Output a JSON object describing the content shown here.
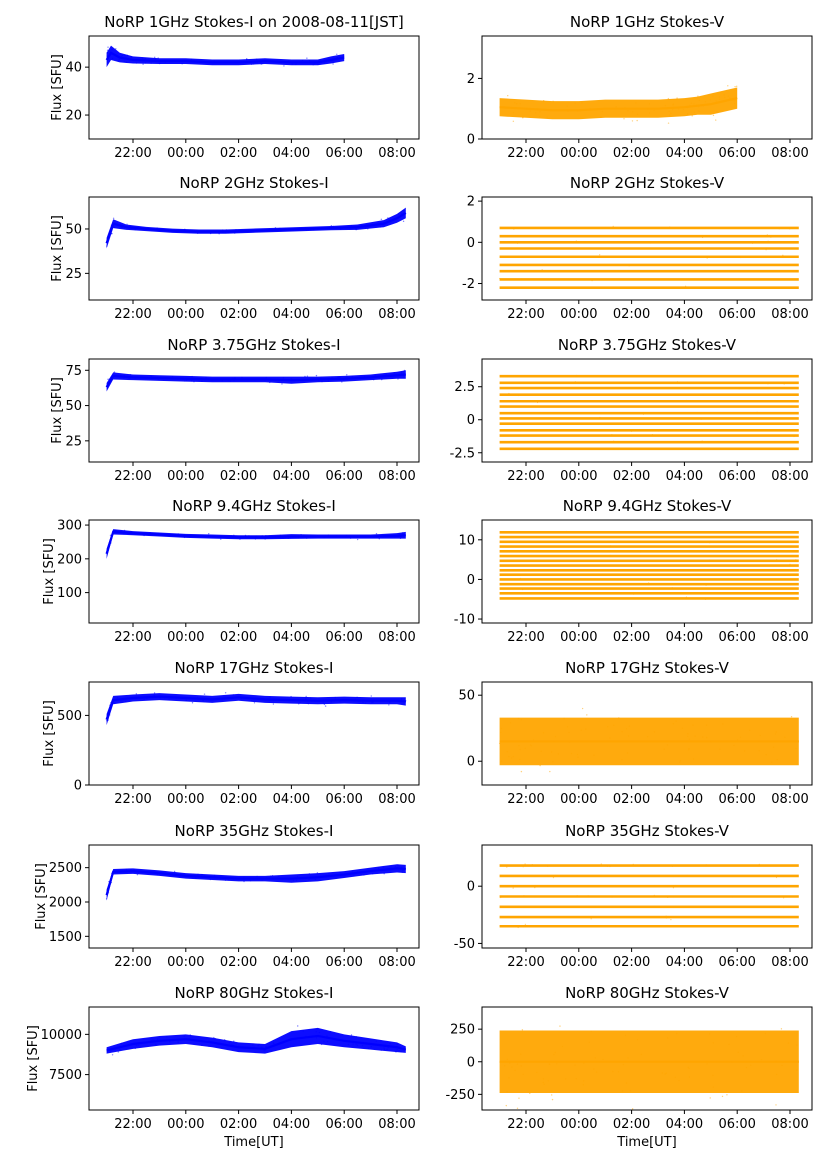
{
  "xticks": [
    "22:00",
    "00:00",
    "02:00",
    "04:00",
    "06:00",
    "08:00"
  ],
  "colors": {
    "stokes_i": "#0000ff",
    "stokes_v": "#ffa500"
  },
  "chart_data": [
    {
      "type": "scatter",
      "title": "NoRP 1GHz Stokes-I on 2008-08-11[JST]",
      "xlabel": "",
      "ylabel": "Flux [SFU]",
      "xlim": [
        "20:20",
        "08:50"
      ],
      "ylim": [
        10,
        53
      ],
      "yticks": [
        20,
        40
      ],
      "series": [
        {
          "color": "#0000ff",
          "x": [
            "21:00",
            "21:10",
            "21:30",
            "22:00",
            "23:00",
            "00:00",
            "01:00",
            "02:00",
            "03:00",
            "04:00",
            "05:00",
            "05:30",
            "06:00"
          ],
          "y": [
            43,
            46,
            44,
            43,
            42.5,
            42.5,
            42,
            42,
            42.5,
            42,
            42,
            43,
            44
          ],
          "spread": [
            3,
            3,
            2,
            1.5,
            1.2,
            1.2,
            1.2,
            1.2,
            1.2,
            1.2,
            1.2,
            1.5,
            1.5
          ]
        }
      ]
    },
    {
      "type": "scatter",
      "title": "NoRP 1GHz Stokes-V",
      "xlabel": "",
      "ylabel": "",
      "xlim": [
        "20:20",
        "08:50"
      ],
      "ylim": [
        0,
        3.4
      ],
      "yticks": [
        0,
        2
      ],
      "series": [
        {
          "color": "#ffa500",
          "x": [
            "21:00",
            "22:00",
            "23:00",
            "00:00",
            "01:00",
            "02:00",
            "03:00",
            "04:00",
            "04:30",
            "05:00",
            "05:30",
            "06:00"
          ],
          "y": [
            1.05,
            1.0,
            0.95,
            0.95,
            1.0,
            1.0,
            1.0,
            1.05,
            1.1,
            1.15,
            1.25,
            1.35
          ],
          "spread": [
            0.3,
            0.3,
            0.3,
            0.3,
            0.3,
            0.3,
            0.3,
            0.3,
            0.3,
            0.35,
            0.35,
            0.35
          ]
        }
      ]
    },
    {
      "type": "scatter",
      "title": "NoRP 2GHz Stokes-I",
      "xlabel": "",
      "ylabel": "Flux [SFU]",
      "xlim": [
        "20:20",
        "08:50"
      ],
      "ylim": [
        10,
        68
      ],
      "yticks": [
        25,
        50
      ],
      "series": [
        {
          "color": "#0000ff",
          "x": [
            "21:00",
            "21:15",
            "21:45",
            "22:30",
            "23:30",
            "00:30",
            "01:30",
            "02:30",
            "03:30",
            "04:30",
            "05:30",
            "06:30",
            "07:30",
            "08:00",
            "08:20"
          ],
          "y": [
            42,
            53,
            51,
            50,
            49,
            48.5,
            48.5,
            49,
            49.5,
            50,
            50.5,
            51,
            53,
            56,
            59
          ],
          "spread": [
            3,
            2.5,
            1.5,
            1.2,
            1.2,
            1.2,
            1.2,
            1.2,
            1.2,
            1.2,
            1.2,
            1.5,
            2,
            2.5,
            3
          ]
        }
      ]
    },
    {
      "type": "scatter",
      "title": "NoRP 2GHz Stokes-V",
      "xlabel": "",
      "ylabel": "",
      "xlim": [
        "20:20",
        "08:50"
      ],
      "ylim": [
        -2.8,
        2.2
      ],
      "yticks": [
        -2,
        0,
        2
      ],
      "series": [
        {
          "color": "#ffa500",
          "levels": [
            -2.2,
            -1.8,
            -1.4,
            -1.1,
            -0.7,
            -0.3,
            0.0,
            0.3,
            0.7
          ],
          "x": [
            "21:00",
            "08:20"
          ]
        }
      ]
    },
    {
      "type": "scatter",
      "title": "NoRP 3.75GHz Stokes-I",
      "xlabel": "",
      "ylabel": "Flux [SFU]",
      "xlim": [
        "20:20",
        "08:50"
      ],
      "ylim": [
        10,
        83
      ],
      "yticks": [
        25,
        50,
        75
      ],
      "series": [
        {
          "color": "#0000ff",
          "x": [
            "21:00",
            "21:15",
            "22:00",
            "23:00",
            "00:00",
            "01:00",
            "02:00",
            "03:00",
            "04:00",
            "05:00",
            "06:00",
            "07:00",
            "08:00",
            "08:20"
          ],
          "y": [
            63,
            71,
            70,
            69.5,
            69,
            68.5,
            68.5,
            68.5,
            68,
            68.5,
            69,
            70,
            71.5,
            72
          ],
          "spread": [
            3,
            2.5,
            2,
            2,
            2,
            2,
            2,
            2,
            2.5,
            2,
            2,
            2,
            2.5,
            3
          ]
        }
      ]
    },
    {
      "type": "scatter",
      "title": "NoRP 3.75GHz Stokes-V",
      "xlabel": "",
      "ylabel": "",
      "xlim": [
        "20:20",
        "08:50"
      ],
      "ylim": [
        -3.2,
        4.6
      ],
      "yticks": [
        -2.5,
        0.0,
        2.5
      ],
      "series": [
        {
          "color": "#ffa500",
          "levels": [
            -2.2,
            -1.7,
            -1.2,
            -0.8,
            -0.3,
            0.1,
            0.5,
            1.0,
            1.4,
            1.9,
            2.4,
            2.8,
            3.3
          ],
          "x": [
            "21:00",
            "08:20"
          ]
        }
      ]
    },
    {
      "type": "scatter",
      "title": "NoRP 9.4GHz Stokes-I",
      "xlabel": "",
      "ylabel": "Flux [SFU]",
      "xlim": [
        "20:20",
        "08:50"
      ],
      "ylim": [
        10,
        315
      ],
      "yticks": [
        100,
        200,
        300
      ],
      "series": [
        {
          "color": "#0000ff",
          "x": [
            "21:00",
            "21:15",
            "22:00",
            "23:00",
            "00:00",
            "01:00",
            "02:00",
            "03:00",
            "04:00",
            "05:00",
            "06:00",
            "07:00",
            "08:00",
            "08:20"
          ],
          "y": [
            215,
            280,
            276,
            272,
            268,
            266,
            264,
            264,
            266,
            266,
            266,
            266,
            268,
            270
          ],
          "spread": [
            15,
            8,
            6,
            6,
            6,
            6,
            6,
            6,
            7,
            6,
            6,
            6,
            8,
            10
          ]
        }
      ]
    },
    {
      "type": "scatter",
      "title": "NoRP 9.4GHz Stokes-V",
      "xlabel": "",
      "ylabel": "",
      "xlim": [
        "20:20",
        "08:50"
      ],
      "ylim": [
        -11,
        15
      ],
      "yticks": [
        -10,
        0,
        10
      ],
      "series": [
        {
          "color": "#ffa500",
          "levels": [
            -4.8,
            -3.5,
            -2.3,
            -1.2,
            0.0,
            1.2,
            2.3,
            3.5,
            4.7,
            5.9,
            7.1,
            8.3,
            9.5,
            10.7,
            11.9
          ],
          "x": [
            "21:00",
            "08:20"
          ]
        }
      ]
    },
    {
      "type": "scatter",
      "title": "NoRP 17GHz Stokes-I",
      "xlabel": "",
      "ylabel": "Flux [SFU]",
      "xlim": [
        "20:20",
        "08:50"
      ],
      "ylim": [
        0,
        740
      ],
      "yticks": [
        0,
        500
      ],
      "series": [
        {
          "color": "#0000ff",
          "x": [
            "21:00",
            "21:15",
            "22:00",
            "23:00",
            "00:00",
            "01:00",
            "02:00",
            "03:00",
            "04:00",
            "05:00",
            "06:00",
            "07:00",
            "08:00",
            "08:20"
          ],
          "y": [
            470,
            610,
            625,
            635,
            625,
            615,
            630,
            615,
            610,
            605,
            610,
            605,
            605,
            600
          ],
          "spread": [
            40,
            30,
            25,
            25,
            25,
            25,
            25,
            25,
            25,
            25,
            25,
            25,
            25,
            30
          ]
        }
      ]
    },
    {
      "type": "scatter",
      "title": "NoRP 17GHz Stokes-V",
      "xlabel": "",
      "ylabel": "",
      "xlim": [
        "20:20",
        "08:50"
      ],
      "ylim": [
        -18,
        60
      ],
      "yticks": [
        0,
        50
      ],
      "series": [
        {
          "color": "#ffa500",
          "x": [
            "21:00",
            "22:00",
            "00:00",
            "02:00",
            "04:00",
            "06:00",
            "08:20"
          ],
          "y": [
            15,
            15,
            15,
            15,
            15,
            15,
            15
          ],
          "spread": [
            18,
            18,
            18,
            18,
            18,
            18,
            18
          ]
        }
      ]
    },
    {
      "type": "scatter",
      "title": "NoRP 35GHz Stokes-I",
      "xlabel": "",
      "ylabel": "Flux [SFU]",
      "xlim": [
        "20:20",
        "08:50"
      ],
      "ylim": [
        1330,
        2830
      ],
      "yticks": [
        1500,
        2000,
        2500
      ],
      "series": [
        {
          "color": "#0000ff",
          "x": [
            "21:00",
            "21:15",
            "22:00",
            "23:00",
            "00:00",
            "01:00",
            "02:00",
            "03:00",
            "04:00",
            "05:00",
            "06:00",
            "07:00",
            "08:00",
            "08:20"
          ],
          "y": [
            2100,
            2440,
            2450,
            2420,
            2380,
            2360,
            2340,
            2340,
            2340,
            2360,
            2400,
            2450,
            2490,
            2480
          ],
          "spread": [
            80,
            40,
            40,
            40,
            40,
            40,
            40,
            40,
            60,
            60,
            50,
            50,
            60,
            60
          ]
        }
      ]
    },
    {
      "type": "scatter",
      "title": "NoRP 35GHz Stokes-V",
      "xlabel": "",
      "ylabel": "",
      "xlim": [
        "20:20",
        "08:50"
      ],
      "ylim": [
        -54,
        36
      ],
      "yticks": [
        -50,
        0
      ],
      "series": [
        {
          "color": "#ffa500",
          "levels": [
            -35,
            -27,
            -18,
            -9,
            0,
            9,
            18
          ],
          "x": [
            "21:00",
            "08:20"
          ]
        }
      ]
    },
    {
      "type": "scatter",
      "title": "NoRP 80GHz Stokes-I",
      "xlabel": "Time[UT]",
      "ylabel": "Flux [SFU]",
      "xlim": [
        "20:20",
        "08:50"
      ],
      "ylim": [
        5300,
        11700
      ],
      "yticks": [
        7500,
        10000
      ],
      "series": [
        {
          "color": "#0000ff",
          "x": [
            "21:00",
            "22:00",
            "23:00",
            "00:00",
            "01:00",
            "02:00",
            "03:00",
            "04:00",
            "05:00",
            "06:00",
            "07:00",
            "08:00",
            "08:20"
          ],
          "y": [
            9000,
            9400,
            9600,
            9700,
            9500,
            9200,
            9100,
            9700,
            9900,
            9600,
            9400,
            9200,
            9050
          ],
          "spread": [
            200,
            300,
            300,
            300,
            300,
            300,
            300,
            500,
            500,
            400,
            350,
            300,
            200
          ]
        }
      ]
    },
    {
      "type": "scatter",
      "title": "NoRP 80GHz Stokes-V",
      "xlabel": "Time[UT]",
      "ylabel": "",
      "xlim": [
        "20:20",
        "08:50"
      ],
      "ylim": [
        -370,
        420
      ],
      "yticks": [
        -250,
        0,
        250
      ],
      "series": [
        {
          "color": "#ffa500",
          "x": [
            "21:00",
            "22:00",
            "00:00",
            "02:00",
            "04:00",
            "06:00",
            "08:20"
          ],
          "y": [
            0,
            0,
            0,
            0,
            0,
            0,
            0
          ],
          "spread": [
            240,
            240,
            240,
            240,
            240,
            240,
            240
          ]
        }
      ]
    }
  ]
}
